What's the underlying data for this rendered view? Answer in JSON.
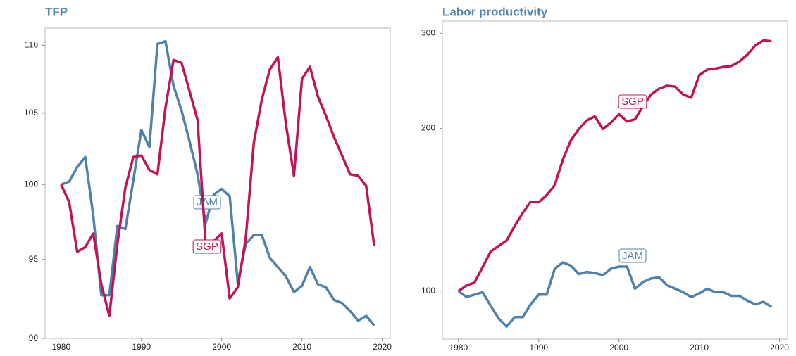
{
  "chart_data": [
    {
      "type": "line",
      "title": "TFP",
      "yscale": "log",
      "x": [
        1980,
        1981,
        1982,
        1983,
        1984,
        1985,
        1986,
        1987,
        1988,
        1989,
        1990,
        1991,
        1992,
        1993,
        1994,
        1995,
        1996,
        1997,
        1998,
        1999,
        2000,
        2001,
        2002,
        2003,
        2004,
        2005,
        2006,
        2007,
        2008,
        2009,
        2010,
        2011,
        2012,
        2013,
        2014,
        2015,
        2016,
        2017,
        2018,
        2019
      ],
      "series": [
        {
          "name": "JAM",
          "color": "#4e81ab",
          "values": [
            100.0,
            100.2,
            101.2,
            101.9,
            97.9,
            92.7,
            92.7,
            97.2,
            97.0,
            100.3,
            103.8,
            102.6,
            110.1,
            110.3,
            107.0,
            105.2,
            103.0,
            100.7,
            97.4,
            99.3,
            99.7,
            99.2,
            93.5,
            96.0,
            96.6,
            96.6,
            95.1,
            94.5,
            93.9,
            92.9,
            93.3,
            94.5,
            93.4,
            93.2,
            92.4,
            92.2,
            91.7,
            91.1,
            91.4,
            90.8
          ]
        },
        {
          "name": "SGP",
          "color": "#c0145a",
          "values": [
            100.0,
            98.8,
            95.5,
            95.8,
            96.7,
            93.4,
            91.4,
            96.0,
            99.8,
            101.9,
            102.0,
            101.0,
            100.7,
            105.4,
            108.9,
            108.7,
            106.6,
            104.5,
            96.0,
            96.2,
            96.7,
            92.5,
            93.2,
            96.4,
            102.9,
            106.0,
            108.2,
            109.1,
            104.2,
            100.6,
            107.5,
            108.4,
            106.2,
            104.8,
            103.3,
            102.0,
            100.7,
            100.6,
            99.9,
            95.9
          ]
        }
      ],
      "xlim": [
        1978,
        2021
      ],
      "xticks": [
        1980,
        1990,
        2000,
        2010,
        2020
      ],
      "ylim": [
        90,
        111.3
      ],
      "yticks": [
        90,
        95,
        100,
        105,
        110
      ]
    },
    {
      "type": "line",
      "title": "Labor productivity",
      "yscale": "log",
      "x": [
        1980,
        1981,
        1982,
        1983,
        1984,
        1985,
        1986,
        1987,
        1988,
        1989,
        1990,
        1991,
        1992,
        1993,
        1994,
        1995,
        1996,
        1997,
        1998,
        1999,
        2000,
        2001,
        2002,
        2003,
        2004,
        2005,
        2006,
        2007,
        2008,
        2009,
        2010,
        2011,
        2012,
        2013,
        2014,
        2015,
        2016,
        2017,
        2018,
        2019
      ],
      "series": [
        {
          "name": "SGP",
          "color": "#c0145a",
          "values": [
            100,
            102.4,
            103.7,
            110.7,
            118.3,
            121.2,
            124,
            132,
            139.5,
            146.4,
            146,
            150.5,
            157,
            175,
            190,
            199.5,
            207,
            210.5,
            199.5,
            205,
            212.5,
            206,
            208,
            220,
            231,
            237,
            240,
            239,
            231,
            228,
            251,
            257,
            258,
            260,
            261,
            266,
            274,
            285,
            291,
            290
          ]
        },
        {
          "name": "JAM",
          "color": "#4e81ab",
          "values": [
            100,
            97.5,
            98.5,
            99.5,
            94,
            89,
            86,
            89.5,
            89.5,
            94.5,
            98.5,
            98.5,
            110,
            113,
            111.5,
            107.5,
            108.5,
            108,
            107,
            110,
            111,
            111,
            101,
            104,
            105.5,
            106,
            102.5,
            101,
            99.5,
            97.5,
            99,
            101,
            99.5,
            99.5,
            98,
            98,
            96,
            94.5,
            95.5,
            93.5
          ]
        }
      ],
      "xlim": [
        1978,
        2021
      ],
      "xticks": [
        1980,
        1990,
        2000,
        2010,
        2020
      ],
      "ylim": [
        81.5,
        316
      ],
      "yticks": [
        100,
        200,
        300
      ]
    }
  ]
}
